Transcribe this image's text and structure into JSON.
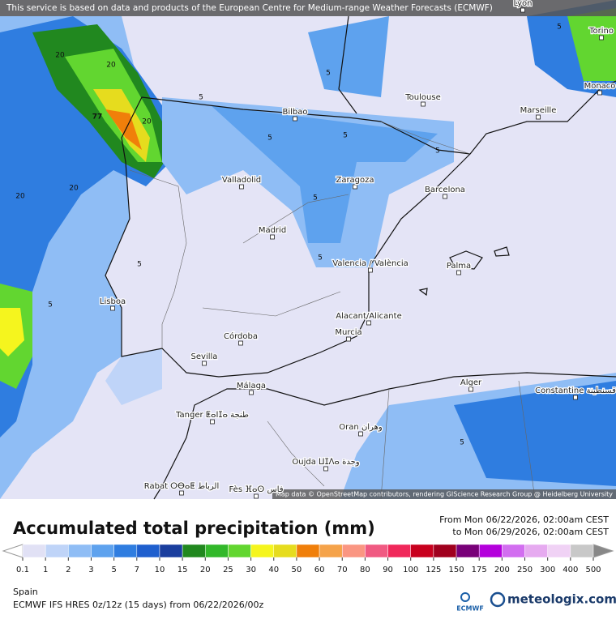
{
  "header": {
    "notice": "This service is based on data and products of the European Centre for Medium-range Weather Forecasts (ECMWF)"
  },
  "map": {
    "attribution": "Map data © OpenStreetMap contributors, rendering GIScience Research Group @ Heidelberg University",
    "cities": [
      "Lyon",
      "Torino",
      "Monaco",
      "Toulouse",
      "Marseille",
      "Bilbao",
      "Valladolid",
      "Zaragoza",
      "Barcelona",
      "Madrid",
      "Valencia / València",
      "Palma",
      "Lisboa",
      "Córdoba",
      "Sevilla",
      "Alacant/Alicante",
      "Murcia",
      "Málaga",
      "Alger",
      "Constantine قسنطينة",
      "Tanger ⵟⴰⵏⵊⴰ طنجة",
      "Oran وهران",
      "Oujda ⵡⵊⴷⴰ وجدة",
      "Rabat ⵔⴱⴰⵟ الرباط",
      "Fès ⴼⴰⵙ فاس"
    ],
    "contour_labels": [
      20,
      20,
      20,
      77,
      20,
      20,
      5,
      5,
      5,
      5,
      5,
      5,
      5,
      5,
      5,
      5,
      5
    ]
  },
  "legend": {
    "title": "Accumulated total precipitation (mm)",
    "date_from": "From Mon 06/22/2026, 02:00am CEST",
    "date_to": "to Mon 06/29/2026, 02:00am CEST",
    "ticks": [
      0.1,
      1,
      2,
      3,
      5,
      7,
      10,
      15,
      20,
      25,
      30,
      40,
      50,
      60,
      70,
      80,
      90,
      100,
      125,
      150,
      175,
      200,
      250,
      300,
      400,
      500
    ],
    "colors": [
      "#e1e1f5",
      "#bfd4f8",
      "#8fbdf5",
      "#5ea2ee",
      "#2f7de0",
      "#1f5fce",
      "#1a3e9e",
      "#21881f",
      "#32b82a",
      "#62d630",
      "#f5f51e",
      "#e6dc1e",
      "#f07f0a",
      "#f5a34a",
      "#fa9682",
      "#f05a82",
      "#f0285a",
      "#c8001e",
      "#a0001e",
      "#780078",
      "#b400dc",
      "#d26ef0",
      "#e6aaf0",
      "#f0d2f5",
      "#c8c8c8"
    ]
  },
  "footer": {
    "region": "Spain",
    "model": "ECMWF IFS HRES 0z/12z (15 days) from 06/22/2026/00z",
    "ecmwf_logo": "ECMWF",
    "brand": "meteologix.com"
  }
}
